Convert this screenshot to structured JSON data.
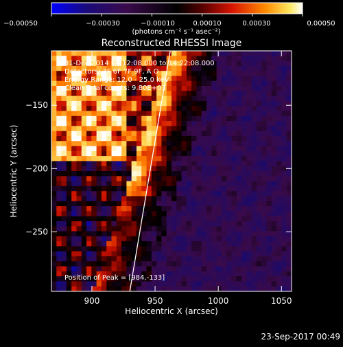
{
  "chart_data": {
    "type": "heatmap",
    "title": "Reconstructed RHESSI Image",
    "xlabel": "Heliocentric X (arcsec)",
    "ylabel": "Heliocentric Y (arcsec)",
    "xlim": [
      868,
      1058
    ],
    "ylim": [
      -297,
      -107
    ],
    "x_ticks": [
      900,
      950,
      1000,
      1050
    ],
    "x_tick_labels": [
      "900",
      "950",
      "1000",
      "1050"
    ],
    "y_ticks": [
      -150,
      -200,
      -250
    ],
    "y_tick_labels": [
      "−150",
      "−200",
      "−250"
    ],
    "colorbar": {
      "range": [
        -0.0005,
        0.0005
      ],
      "tick_values": [
        -0.0005,
        -0.0003,
        -0.0001,
        0.0001,
        0.0003,
        0.0005
      ],
      "tick_labels": [
        "−0.00050",
        "−0.00030",
        "−0.00010",
        "0.00010",
        "0.00030",
        "0.00050"
      ],
      "units": "(photons cm⁻² s⁻¹ asec⁻²)",
      "colormap": [
        "#0000ff",
        "#1a0a6a",
        "#3a0a4a",
        "#000000",
        "#4a0000",
        "#cc1000",
        "#ff7a00",
        "#ffe060",
        "#ffffff"
      ]
    },
    "annotations": [
      "31-Dec-2014 14:12:08.000 to 14:22:08.000",
      "Detectors: 3F 6F 7F 9F, A  O",
      "Energy Range: 12.0 - 25.0 keV",
      "Clean     Total counts: 9.80E+03"
    ],
    "peak_label": "Position of Peak = [984,-133]",
    "limb_line": {
      "x_start": 962,
      "y_start": -107,
      "x_end": 930,
      "y_end": -297
    },
    "grid": false
  },
  "footer": {
    "timestamp": "23-Sep-2017 00:49"
  }
}
